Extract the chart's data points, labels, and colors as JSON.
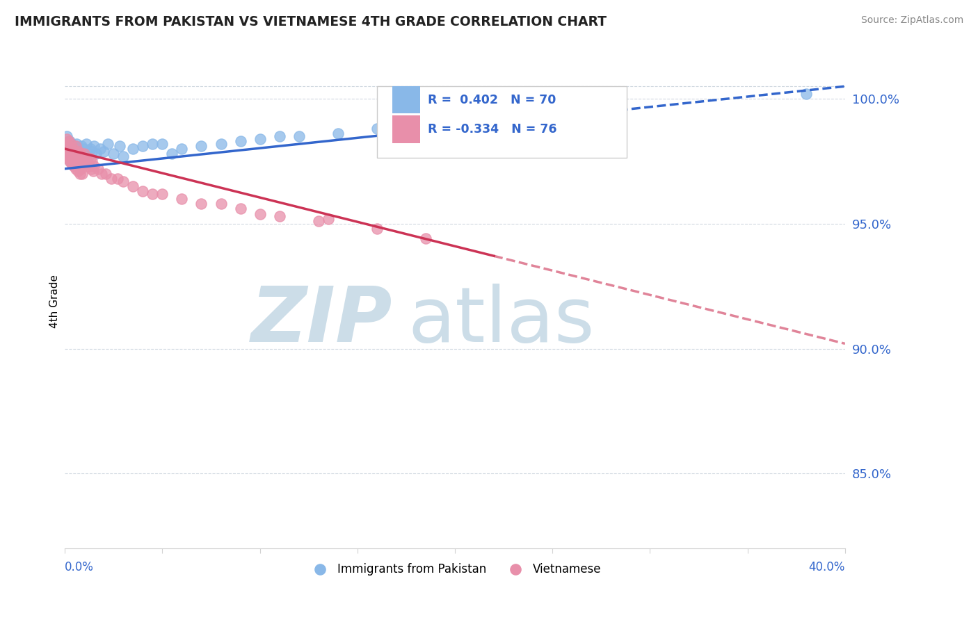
{
  "title": "IMMIGRANTS FROM PAKISTAN VS VIETNAMESE 4TH GRADE CORRELATION CHART",
  "source_text": "Source: ZipAtlas.com",
  "ylabel": "4th Grade",
  "y_ticks": [
    85.0,
    90.0,
    95.0,
    100.0
  ],
  "x_min": 0.0,
  "x_max": 40.0,
  "y_min": 82.0,
  "y_max": 101.8,
  "r_pakistan": 0.402,
  "n_pakistan": 70,
  "r_vietnamese": -0.334,
  "n_vietnamese": 76,
  "color_pakistan": "#89b8e8",
  "color_vietnamese": "#e88faa",
  "color_line_pakistan": "#3366cc",
  "color_line_vietnamese": "#cc3355",
  "legend_label_pakistan": "Immigrants from Pakistan",
  "legend_label_vietnamese": "Vietnamese",
  "watermark_color": "#ccdde8",
  "pak_line_x0": 0.0,
  "pak_line_y0": 97.2,
  "pak_line_x1": 40.0,
  "pak_line_y1": 100.5,
  "pak_solid_end": 16.0,
  "vie_line_x0": 0.0,
  "vie_line_y0": 98.0,
  "vie_line_x1": 40.0,
  "vie_line_y1": 90.2,
  "vie_solid_end": 22.0,
  "pakistan_scatter_x": [
    0.05,
    0.08,
    0.1,
    0.12,
    0.15,
    0.18,
    0.2,
    0.22,
    0.25,
    0.28,
    0.3,
    0.32,
    0.35,
    0.38,
    0.4,
    0.42,
    0.45,
    0.5,
    0.55,
    0.6,
    0.65,
    0.7,
    0.75,
    0.8,
    0.85,
    0.9,
    0.95,
    1.0,
    1.1,
    1.2,
    1.3,
    1.4,
    1.5,
    1.6,
    1.8,
    2.0,
    2.2,
    2.5,
    2.8,
    3.0,
    3.5,
    4.0,
    4.5,
    5.0,
    5.5,
    6.0,
    7.0,
    8.0,
    9.0,
    10.0,
    11.0,
    12.0,
    14.0,
    16.0,
    0.06,
    0.09,
    0.13,
    0.17,
    0.21,
    0.26,
    0.31,
    0.36,
    0.41,
    0.46,
    0.52,
    0.58,
    0.63,
    0.68,
    0.73,
    38.0
  ],
  "pakistan_scatter_y": [
    97.8,
    98.2,
    98.5,
    97.6,
    98.0,
    97.9,
    98.1,
    97.7,
    98.3,
    97.5,
    98.0,
    97.8,
    98.2,
    97.9,
    97.7,
    98.1,
    97.6,
    98.0,
    97.9,
    98.2,
    97.8,
    98.0,
    97.6,
    97.9,
    98.1,
    97.7,
    98.0,
    97.8,
    98.2,
    97.7,
    98.0,
    97.9,
    98.1,
    97.8,
    98.0,
    97.9,
    98.2,
    97.8,
    98.1,
    97.7,
    98.0,
    98.1,
    98.2,
    98.2,
    97.8,
    98.0,
    98.1,
    98.2,
    98.3,
    98.4,
    98.5,
    98.5,
    98.6,
    98.8,
    97.9,
    98.1,
    97.8,
    98.0,
    97.7,
    98.2,
    97.9,
    97.6,
    98.0,
    97.8,
    98.1,
    97.9,
    97.7,
    98.0,
    97.8,
    100.2
  ],
  "vietnamese_scatter_x": [
    0.05,
    0.08,
    0.1,
    0.12,
    0.15,
    0.18,
    0.2,
    0.22,
    0.25,
    0.28,
    0.3,
    0.32,
    0.35,
    0.38,
    0.4,
    0.42,
    0.45,
    0.5,
    0.55,
    0.6,
    0.65,
    0.7,
    0.75,
    0.8,
    0.85,
    0.9,
    0.95,
    1.0,
    1.1,
    1.2,
    1.3,
    1.4,
    1.5,
    1.7,
    1.9,
    2.1,
    2.4,
    2.7,
    3.0,
    3.5,
    4.0,
    4.5,
    5.0,
    6.0,
    7.0,
    8.0,
    9.0,
    10.0,
    11.0,
    13.0,
    16.0,
    18.5,
    0.06,
    0.09,
    0.13,
    0.17,
    0.21,
    0.26,
    0.31,
    0.36,
    0.41,
    0.46,
    0.52,
    0.58,
    0.63,
    0.68,
    0.73,
    0.78,
    0.83,
    0.88,
    1.05,
    1.15,
    1.25,
    1.35,
    1.45,
    13.5
  ],
  "vietnamese_scatter_y": [
    98.2,
    97.9,
    98.4,
    97.7,
    98.1,
    97.8,
    98.3,
    97.6,
    98.0,
    97.9,
    97.7,
    98.2,
    97.5,
    97.9,
    97.8,
    98.0,
    97.6,
    97.9,
    98.1,
    97.7,
    97.5,
    97.9,
    97.6,
    97.8,
    97.5,
    97.7,
    97.6,
    97.8,
    97.5,
    97.4,
    97.6,
    97.5,
    97.3,
    97.2,
    97.0,
    97.0,
    96.8,
    96.8,
    96.7,
    96.5,
    96.3,
    96.2,
    96.2,
    96.0,
    95.8,
    95.8,
    95.6,
    95.4,
    95.3,
    95.1,
    94.8,
    94.4,
    98.0,
    97.7,
    97.9,
    97.6,
    97.8,
    97.5,
    97.7,
    97.4,
    97.6,
    97.3,
    97.5,
    97.2,
    97.4,
    97.1,
    97.3,
    97.0,
    97.2,
    97.0,
    97.6,
    97.4,
    97.3,
    97.2,
    97.1,
    95.2
  ]
}
